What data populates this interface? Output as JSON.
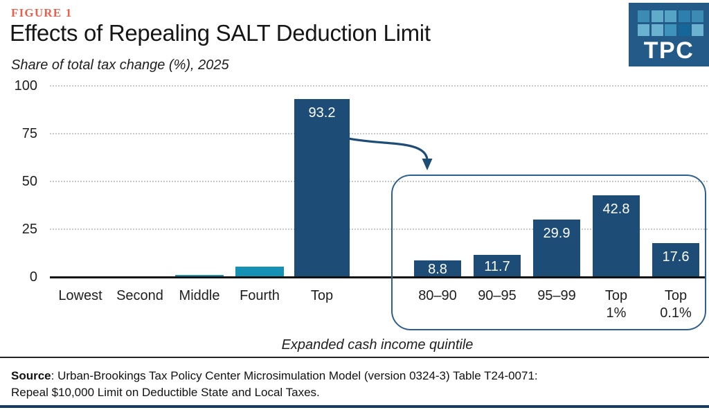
{
  "figure_label": "FIGURE 1",
  "title": "Effects of Repealing SALT Deduction Limit",
  "subtitle": "Share of total tax change (%), 2025",
  "xaxis_title": "Expanded cash income quintile",
  "logo": {
    "text": "TPC",
    "bg_color": "#235a88",
    "square_rows": [
      [
        "#3a8cb5",
        "#60aaca",
        "#55a3c5",
        "#2d80ad",
        "#3a8cb5"
      ],
      [
        "#6ab2d0",
        "#6ab2d0",
        "#3d93bb",
        "#15679a",
        "#6ab2d0"
      ]
    ]
  },
  "colors": {
    "navy_bar": "#1d4d77",
    "teal_bar": "#1591b6",
    "accent_coral": "#e8604c",
    "gridline": "#c9c9c9",
    "inset_border": "#2d5f8e",
    "footer": "#143d61"
  },
  "chart_data": [
    {
      "type": "bar",
      "name": "main",
      "title": "Effects of Repealing SALT Deduction Limit",
      "ylabel": "Share of total tax change (%), 2025",
      "xlabel": "Expanded cash income quintile",
      "categories": [
        "Lowest",
        "Second",
        "Middle",
        "Fourth",
        "Top"
      ],
      "values": [
        0,
        0.1,
        1.2,
        5.4,
        93.2
      ],
      "value_labels": [
        null,
        null,
        null,
        null,
        "93.2"
      ],
      "bar_colors": [
        "#1591b6",
        "#1591b6",
        "#1591b6",
        "#1591b6",
        "#1d4d77"
      ],
      "ylim": [
        0,
        100
      ],
      "yticks": [
        0,
        25,
        50,
        75,
        100
      ],
      "grid": "dotted horizontal",
      "legend": "none"
    },
    {
      "type": "bar",
      "name": "top-quintile-breakdown-inset",
      "title": "Breakdown of top quintile (callout from Top bar)",
      "categories": [
        "80–90",
        "90–95",
        "95–99",
        "Top 1%",
        "Top 0.1%"
      ],
      "values": [
        8.8,
        11.7,
        29.9,
        42.8,
        17.6
      ],
      "value_labels": [
        "8.8",
        "11.7",
        "29.9",
        "42.8",
        "17.6"
      ],
      "bar_colors": [
        "#1d4d77",
        "#1d4d77",
        "#1d4d77",
        "#1d4d77",
        "#1d4d77"
      ],
      "ylim": [
        0,
        100
      ],
      "grid": "shared with main chart",
      "annotation": "curved arrow from Top bar to rounded inset panel"
    }
  ],
  "source": {
    "label": "Source",
    "text": ": Urban-Brookings Tax Policy Center Microsimulation Model (version 0324-3) Table T24-0071: Repeal $10,000 Limit on Deductible State and Local Taxes."
  }
}
